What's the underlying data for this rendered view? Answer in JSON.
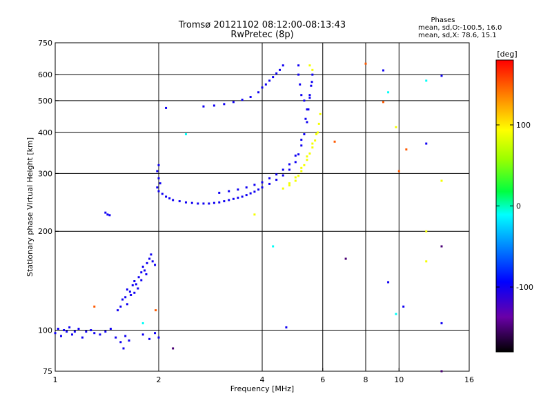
{
  "chart_data": {
    "type": "scatter",
    "title": "Tromsø 20121102 08:12:00-08:13:43",
    "subtitle": "RwPretec (8p)",
    "stats": {
      "heading": "Phases",
      "line_o": "mean, sd,O:-100.5, 16.0",
      "line_x": "mean, sd,X: 78.6, 15.1"
    },
    "xlabel": "Frequency [MHz]",
    "ylabel": "Stationary phase Virtual Height [km]",
    "x_scale": "log",
    "y_scale": "log",
    "xlim": [
      1,
      16
    ],
    "ylim": [
      75,
      750
    ],
    "x_ticks": [
      1,
      2,
      4,
      6,
      8,
      10,
      16
    ],
    "x_tick_labels": [
      "1",
      "2",
      "4",
      "6",
      "8",
      "10",
      "16"
    ],
    "x_gridlines": [
      2,
      4,
      6,
      8,
      10
    ],
    "y_ticks": [
      75,
      100,
      200,
      300,
      400,
      500,
      600,
      750
    ],
    "y_tick_labels": [
      "75",
      "100",
      "200",
      "300",
      "400",
      "500",
      "600",
      "750"
    ],
    "y_gridlines": [
      100,
      200,
      300,
      400,
      500,
      600
    ],
    "grid": true,
    "colorbar": {
      "label": "[deg]",
      "min": -180,
      "max": 180,
      "ticks": [
        -100,
        0,
        100
      ],
      "tick_labels": [
        "-100",
        "0",
        "100"
      ],
      "colormap": "rainbow (black-purple-blue-cyan-green-yellow-red)"
    },
    "series": [
      {
        "name": "",
        "color_phase_deg": -100,
        "points": [
          [
            1.0,
            98
          ],
          [
            1.02,
            101
          ],
          [
            1.04,
            96
          ],
          [
            1.06,
            100
          ],
          [
            1.08,
            99
          ],
          [
            1.1,
            102
          ],
          [
            1.12,
            97
          ],
          [
            1.14,
            99
          ],
          [
            1.17,
            101
          ],
          [
            1.2,
            95
          ],
          [
            1.23,
            99
          ],
          [
            1.27,
            100
          ],
          [
            1.3,
            98
          ],
          [
            1.35,
            97
          ],
          [
            1.4,
            99
          ],
          [
            1.45,
            101
          ],
          [
            1.5,
            95
          ],
          [
            1.55,
            92
          ],
          [
            1.6,
            96
          ],
          [
            1.52,
            115
          ],
          [
            1.55,
            118
          ],
          [
            1.57,
            124
          ],
          [
            1.6,
            126
          ],
          [
            1.62,
            133
          ],
          [
            1.65,
            131
          ],
          [
            1.68,
            137
          ],
          [
            1.7,
            141
          ],
          [
            1.72,
            138
          ],
          [
            1.75,
            145
          ],
          [
            1.78,
            150
          ],
          [
            1.8,
            156
          ],
          [
            1.82,
            152
          ],
          [
            1.85,
            160
          ],
          [
            1.88,
            165
          ],
          [
            1.9,
            170
          ],
          [
            1.92,
            162
          ],
          [
            1.95,
            158
          ],
          [
            1.62,
            120
          ],
          [
            1.66,
            128
          ],
          [
            1.7,
            130
          ],
          [
            1.74,
            134
          ],
          [
            1.78,
            142
          ],
          [
            1.84,
            148
          ],
          [
            1.4,
            228
          ],
          [
            1.42,
            225
          ],
          [
            1.44,
            224
          ],
          [
            1.58,
            88
          ],
          [
            1.64,
            93
          ],
          [
            1.8,
            97
          ],
          [
            1.88,
            94
          ],
          [
            1.95,
            98
          ],
          [
            2.0,
            95
          ],
          [
            2.0,
            318
          ],
          [
            1.98,
            305
          ],
          [
            2.0,
            290
          ],
          [
            2.02,
            280
          ],
          [
            1.98,
            272
          ],
          [
            2.0,
            265
          ],
          [
            2.05,
            260
          ],
          [
            2.1,
            255
          ],
          [
            2.15,
            252
          ],
          [
            2.2,
            249
          ],
          [
            2.3,
            247
          ],
          [
            2.4,
            245
          ],
          [
            2.5,
            244
          ],
          [
            2.6,
            243
          ],
          [
            2.7,
            243
          ],
          [
            2.8,
            243
          ],
          [
            2.9,
            244
          ],
          [
            3.0,
            245
          ],
          [
            3.1,
            247
          ],
          [
            3.2,
            249
          ],
          [
            3.3,
            251
          ],
          [
            3.4,
            253
          ],
          [
            3.5,
            255
          ],
          [
            3.6,
            258
          ],
          [
            3.7,
            261
          ],
          [
            3.8,
            264
          ],
          [
            3.9,
            268
          ],
          [
            4.0,
            272
          ],
          [
            4.2,
            279
          ],
          [
            4.4,
            287
          ],
          [
            4.6,
            296
          ],
          [
            4.8,
            308
          ],
          [
            5.0,
            325
          ],
          [
            5.1,
            343
          ],
          [
            5.2,
            365
          ],
          [
            5.3,
            395
          ],
          [
            5.4,
            430
          ],
          [
            5.45,
            470
          ],
          [
            5.5,
            510
          ],
          [
            5.55,
            555
          ],
          [
            5.6,
            600
          ],
          [
            3.0,
            262
          ],
          [
            3.2,
            265
          ],
          [
            3.4,
            268
          ],
          [
            3.6,
            272
          ],
          [
            3.8,
            277
          ],
          [
            4.0,
            282
          ],
          [
            4.2,
            290
          ],
          [
            4.4,
            298
          ],
          [
            4.6,
            308
          ],
          [
            4.8,
            320
          ],
          [
            5.0,
            340
          ],
          [
            5.2,
            380
          ],
          [
            5.35,
            440
          ],
          [
            5.5,
            520
          ],
          [
            5.58,
            570
          ],
          [
            2.7,
            480
          ],
          [
            2.9,
            483
          ],
          [
            3.1,
            488
          ],
          [
            3.3,
            495
          ],
          [
            3.5,
            503
          ],
          [
            3.7,
            513
          ],
          [
            3.9,
            530
          ],
          [
            4.0,
            548
          ],
          [
            4.1,
            560
          ],
          [
            4.2,
            575
          ],
          [
            4.3,
            590
          ],
          [
            4.4,
            605
          ],
          [
            4.5,
            620
          ],
          [
            4.6,
            640
          ],
          [
            5.1,
            640
          ],
          [
            5.1,
            600
          ],
          [
            5.15,
            560
          ],
          [
            5.2,
            520
          ],
          [
            5.3,
            500
          ],
          [
            5.4,
            470
          ],
          [
            2.1,
            475
          ],
          [
            4.7,
            102
          ],
          [
            9.3,
            140
          ],
          [
            12.0,
            370
          ],
          [
            13.3,
            105
          ],
          [
            13.3,
            595
          ],
          [
            9.0,
            618
          ],
          [
            10.3,
            118
          ]
        ]
      },
      {
        "name": "",
        "color_phase_deg": 90,
        "points": [
          [
            4.6,
            270
          ],
          [
            4.8,
            276
          ],
          [
            5.0,
            285
          ],
          [
            5.1,
            295
          ],
          [
            5.2,
            305
          ],
          [
            5.3,
            318
          ],
          [
            5.4,
            330
          ],
          [
            5.5,
            345
          ],
          [
            5.6,
            360
          ],
          [
            5.7,
            378
          ],
          [
            5.8,
            400
          ],
          [
            5.85,
            425
          ],
          [
            5.9,
            455
          ],
          [
            4.8,
            280
          ],
          [
            5.0,
            292
          ],
          [
            5.2,
            312
          ],
          [
            5.4,
            338
          ],
          [
            5.6,
            370
          ],
          [
            5.75,
            395
          ],
          [
            5.6,
            620
          ],
          [
            3.8,
            225
          ],
          [
            12.0,
            200
          ],
          [
            12.0,
            162
          ],
          [
            13.3,
            285
          ],
          [
            9.8,
            415
          ],
          [
            5.5,
            640
          ]
        ]
      },
      {
        "name": "",
        "color_phase_deg": 150,
        "points": [
          [
            1.3,
            118
          ],
          [
            1.96,
            115
          ],
          [
            6.5,
            375
          ],
          [
            8.0,
            648
          ],
          [
            10.5,
            355
          ],
          [
            9.0,
            495
          ],
          [
            10.0,
            305
          ]
        ]
      },
      {
        "name": "",
        "color_phase_deg": -10,
        "points": [
          [
            2.4,
            395
          ],
          [
            1.8,
            105
          ],
          [
            4.3,
            180
          ],
          [
            9.8,
            112
          ],
          [
            9.3,
            530
          ],
          [
            12.0,
            575
          ]
        ]
      },
      {
        "name": "",
        "color_phase_deg": -150,
        "points": [
          [
            7.0,
            165
          ],
          [
            13.3,
            180
          ],
          [
            2.2,
            88
          ],
          [
            13.3,
            75
          ]
        ]
      }
    ]
  }
}
